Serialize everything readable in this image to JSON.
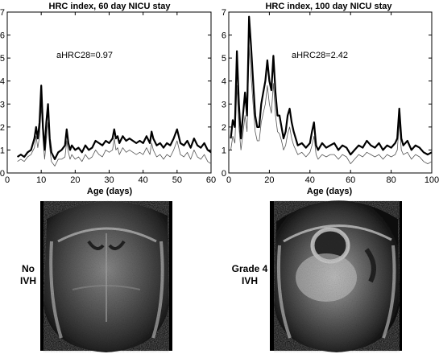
{
  "chart_data": [
    {
      "type": "line",
      "title": "HRC index, 60 day NICU stay",
      "xlabel": "Age (days)",
      "ylabel": "",
      "xlim": [
        0,
        60
      ],
      "ylim": [
        0,
        7
      ],
      "xticks": [
        0,
        10,
        20,
        30,
        40,
        50,
        60
      ],
      "yticks": [
        0,
        1,
        2,
        3,
        4,
        5,
        6,
        7
      ],
      "annotation": "aHRC28=0.97",
      "grid": false,
      "series": [
        {
          "style": "bold",
          "x": [
            3,
            4,
            5,
            6,
            7,
            8,
            8.5,
            9,
            9.5,
            10,
            10.5,
            11,
            11.5,
            12,
            12.5,
            13,
            14,
            15,
            16,
            17,
            17.5,
            18,
            18.5,
            19,
            20,
            21,
            22,
            23,
            24,
            25,
            26,
            27,
            28,
            29,
            30,
            31,
            31.5,
            32,
            32.5,
            33,
            34,
            35,
            36,
            37,
            38,
            39,
            40,
            41,
            42,
            42.5,
            43,
            44,
            45,
            46,
            47,
            48,
            49,
            50,
            51,
            52,
            53,
            54,
            55,
            56,
            57,
            58,
            59,
            60
          ],
          "values": [
            0.7,
            0.8,
            0.7,
            0.9,
            1.0,
            1.5,
            2.0,
            1.5,
            2.2,
            3.8,
            2.0,
            1.0,
            2.2,
            3.0,
            1.5,
            0.9,
            0.6,
            0.9,
            1.0,
            1.2,
            1.9,
            1.3,
            1.0,
            1.2,
            1.0,
            1.1,
            0.9,
            1.2,
            1.0,
            1.1,
            1.4,
            1.3,
            1.2,
            1.4,
            1.3,
            1.5,
            1.9,
            1.5,
            1.6,
            1.3,
            1.6,
            1.4,
            1.5,
            1.4,
            1.3,
            1.4,
            1.3,
            1.6,
            1.3,
            1.8,
            1.5,
            1.2,
            1.3,
            1.1,
            1.3,
            1.2,
            1.5,
            1.9,
            1.3,
            1.2,
            1.4,
            1.1,
            1.5,
            1.2,
            1.1,
            1.3,
            1.0,
            0.9
          ]
        },
        {
          "style": "thin",
          "x": [
            3,
            4,
            5,
            6,
            7,
            8,
            8.5,
            9,
            9.5,
            10,
            10.5,
            11,
            11.5,
            12,
            12.5,
            13,
            14,
            15,
            16,
            17,
            17.5,
            18,
            18.5,
            19,
            20,
            21,
            22,
            23,
            24,
            25,
            26,
            27,
            28,
            29,
            30,
            31,
            31.5,
            32,
            32.5,
            33,
            34,
            35,
            36,
            37,
            38,
            39,
            40,
            41,
            42,
            42.5,
            43,
            44,
            45,
            46,
            47,
            48,
            49,
            50,
            51,
            52,
            53,
            54,
            55,
            56,
            57,
            58,
            59,
            60
          ],
          "values": [
            0.5,
            0.6,
            0.5,
            0.7,
            0.8,
            1.1,
            1.6,
            1.1,
            1.6,
            2.9,
            1.5,
            0.6,
            1.4,
            2.2,
            1.1,
            0.5,
            0.3,
            0.6,
            0.6,
            0.7,
            1.4,
            0.9,
            0.6,
            0.8,
            0.6,
            0.7,
            0.5,
            0.8,
            0.6,
            0.7,
            1.0,
            0.8,
            0.7,
            1.0,
            0.9,
            1.0,
            1.5,
            1.0,
            1.1,
            0.8,
            1.1,
            0.9,
            1.0,
            0.9,
            0.8,
            0.9,
            0.8,
            1.1,
            0.8,
            1.3,
            1.0,
            0.7,
            0.8,
            0.6,
            0.8,
            0.7,
            1.0,
            1.4,
            0.8,
            0.7,
            0.9,
            0.6,
            1.0,
            0.7,
            0.6,
            0.8,
            0.5,
            0.4
          ]
        }
      ]
    },
    {
      "type": "line",
      "title": "HRC index, 100 day NICU stay",
      "xlabel": "Age (days)",
      "ylabel": "",
      "xlim": [
        0,
        100
      ],
      "ylim": [
        0,
        7
      ],
      "xticks": [
        0,
        20,
        40,
        60,
        80,
        100
      ],
      "yticks": [
        0,
        1,
        2,
        3,
        4,
        5,
        6,
        7
      ],
      "annotation": "aHRC28=2.42",
      "grid": false,
      "series": [
        {
          "style": "bold",
          "x": [
            1,
            2,
            3,
            4,
            5,
            6,
            7,
            8,
            9,
            10,
            11,
            12,
            13,
            14,
            15,
            16,
            17,
            18,
            19,
            20,
            21,
            22,
            23,
            24,
            25,
            26,
            27,
            28,
            29,
            30,
            31,
            32,
            34,
            36,
            38,
            40,
            41,
            42,
            43,
            44,
            46,
            48,
            50,
            52,
            54,
            56,
            58,
            60,
            62,
            64,
            66,
            68,
            70,
            72,
            74,
            76,
            78,
            80,
            82,
            83,
            84,
            85,
            86,
            88,
            90,
            92,
            94,
            96,
            98,
            100
          ],
          "values": [
            1.5,
            2.3,
            2.0,
            5.3,
            3.0,
            1.5,
            2.5,
            3.5,
            2.5,
            6.8,
            5.5,
            4.0,
            2.5,
            2.0,
            2.0,
            3.0,
            3.5,
            4.0,
            4.9,
            4.0,
            3.6,
            5.1,
            3.5,
            2.5,
            2.5,
            2.0,
            1.5,
            1.8,
            2.5,
            2.8,
            2.2,
            1.8,
            1.2,
            1.3,
            1.1,
            1.3,
            1.8,
            2.2,
            1.2,
            1.0,
            1.3,
            1.1,
            1.2,
            1.3,
            1.0,
            1.2,
            1.1,
            0.8,
            1.0,
            1.2,
            1.1,
            1.4,
            1.2,
            1.1,
            1.3,
            1.0,
            1.2,
            1.1,
            1.3,
            1.5,
            2.8,
            1.5,
            1.2,
            1.4,
            1.0,
            1.2,
            1.1,
            0.9,
            0.8,
            0.9
          ]
        },
        {
          "style": "thin",
          "x": [
            1,
            2,
            3,
            4,
            5,
            6,
            7,
            8,
            9,
            10,
            11,
            12,
            13,
            14,
            15,
            16,
            17,
            18,
            19,
            20,
            21,
            22,
            23,
            24,
            25,
            26,
            27,
            28,
            29,
            30,
            31,
            32,
            34,
            36,
            38,
            40,
            41,
            42,
            43,
            44,
            46,
            48,
            50,
            52,
            54,
            56,
            58,
            60,
            62,
            64,
            66,
            68,
            70,
            72,
            74,
            76,
            78,
            80,
            82,
            83,
            84,
            85,
            86,
            88,
            90,
            92,
            94,
            96,
            98,
            100
          ],
          "values": [
            1.0,
            1.6,
            1.3,
            3.8,
            2.0,
            1.0,
            1.7,
            2.5,
            1.8,
            5.5,
            4.2,
            3.0,
            1.8,
            1.4,
            1.4,
            2.2,
            2.6,
            3.0,
            3.8,
            3.0,
            2.6,
            3.9,
            2.5,
            1.8,
            1.7,
            1.4,
            1.0,
            1.2,
            1.7,
            2.0,
            1.5,
            1.2,
            0.8,
            0.9,
            0.7,
            0.9,
            1.2,
            1.6,
            0.8,
            0.6,
            0.8,
            0.7,
            0.8,
            0.8,
            0.6,
            0.8,
            0.7,
            0.4,
            0.6,
            0.8,
            0.7,
            0.9,
            0.8,
            0.7,
            0.8,
            0.6,
            0.8,
            0.7,
            0.8,
            1.0,
            2.2,
            1.0,
            0.8,
            0.9,
            0.6,
            0.8,
            0.7,
            0.5,
            0.4,
            0.5
          ]
        }
      ]
    }
  ],
  "images": [
    {
      "label_line1": "No",
      "label_line2": "IVH"
    },
    {
      "label_line1": "Grade 4",
      "label_line2": "IVH"
    }
  ]
}
